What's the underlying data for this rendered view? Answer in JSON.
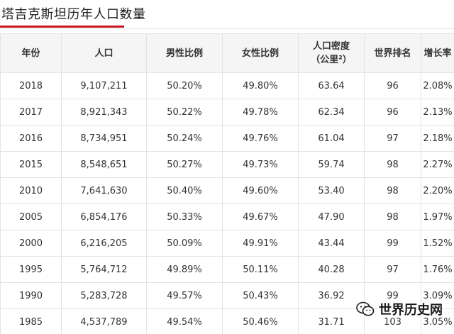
{
  "page": {
    "title": "塔吉克斯坦历年人口数量"
  },
  "table": {
    "headers": {
      "year": "年份",
      "population": "人口",
      "male_ratio": "男性比例",
      "female_ratio": "女性比例",
      "density_line1": "人口密度",
      "density_line2": "（公里²）",
      "world_rank": "世界排名",
      "growth_rate": "增长率"
    },
    "rows": [
      {
        "year": "2018",
        "population": "9,107,211",
        "male": "50.20%",
        "female": "49.80%",
        "density": "63.64",
        "rank": "96",
        "growth": "2.08%"
      },
      {
        "year": "2017",
        "population": "8,921,343",
        "male": "50.22%",
        "female": "49.78%",
        "density": "62.34",
        "rank": "96",
        "growth": "2.13%"
      },
      {
        "year": "2016",
        "population": "8,734,951",
        "male": "50.24%",
        "female": "49.76%",
        "density": "61.04",
        "rank": "97",
        "growth": "2.18%"
      },
      {
        "year": "2015",
        "population": "8,548,651",
        "male": "50.27%",
        "female": "49.73%",
        "density": "59.74",
        "rank": "98",
        "growth": "2.27%"
      },
      {
        "year": "2010",
        "population": "7,641,630",
        "male": "50.40%",
        "female": "49.60%",
        "density": "53.40",
        "rank": "98",
        "growth": "2.20%"
      },
      {
        "year": "2005",
        "population": "6,854,176",
        "male": "50.33%",
        "female": "49.67%",
        "density": "47.90",
        "rank": "98",
        "growth": "1.97%"
      },
      {
        "year": "2000",
        "population": "6,216,205",
        "male": "50.09%",
        "female": "49.91%",
        "density": "43.44",
        "rank": "99",
        "growth": "1.52%"
      },
      {
        "year": "1995",
        "population": "5,764,712",
        "male": "49.89%",
        "female": "50.11%",
        "density": "40.28",
        "rank": "97",
        "growth": "1.76%"
      },
      {
        "year": "1990",
        "population": "5,283,728",
        "male": "49.57%",
        "female": "50.43%",
        "density": "36.92",
        "rank": "99",
        "growth": "3.09%"
      },
      {
        "year": "1985",
        "population": "4,537,789",
        "male": "49.54%",
        "female": "50.46%",
        "density": "31.71",
        "rank": "103",
        "growth": "3.05%"
      }
    ]
  },
  "watermark": {
    "text": "世界历史网",
    "icon": "wechat-icon"
  },
  "colors": {
    "accent": "#c8161d",
    "growth": "#2e9a2e",
    "header_bg": "#f5f5f5",
    "border": "#e3e3e3"
  }
}
